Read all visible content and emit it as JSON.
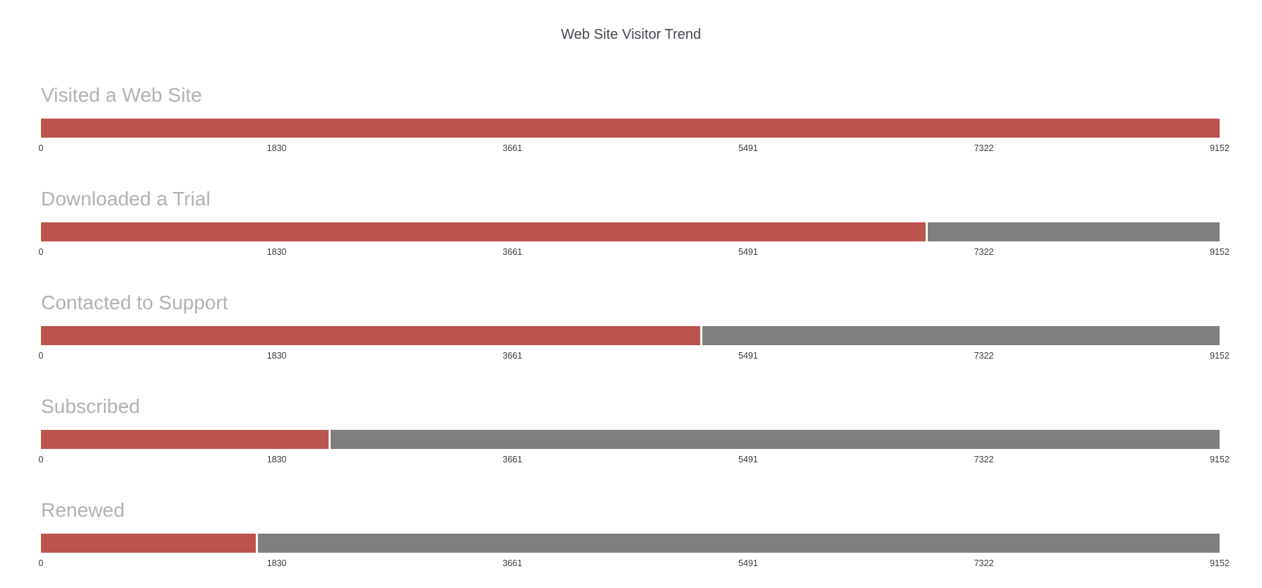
{
  "title": "Web Site Visitor Trend",
  "chart_data": {
    "type": "bar",
    "orientation": "horizontal",
    "title": "Web Site Visitor Trend",
    "categories": [
      "Visited a Web Site",
      "Downloaded a Trial",
      "Contacted to Support",
      "Subscribed",
      "Renewed"
    ],
    "values": [
      9152,
      6870,
      5120,
      2233,
      1668
    ],
    "max": 9152,
    "xlim": [
      0,
      9152
    ],
    "axis_tick_labels": [
      "0",
      "1830",
      "3661",
      "5491",
      "7322",
      "9152"
    ],
    "grid": false,
    "legend": "none",
    "colors": {
      "fill": "#bb544d",
      "track": "#7f7f7f",
      "category_label": "#b2b2b2",
      "axis_label": "#3b3b3b",
      "title": "#474751",
      "background": "#ffffff"
    }
  }
}
